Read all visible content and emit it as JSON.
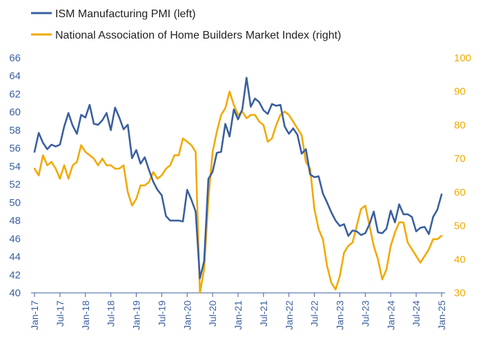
{
  "chart_data": {
    "type": "line",
    "x_start": "Jan-17",
    "x_tick_labels": [
      "Jan-17",
      "Jul-17",
      "Jan-18",
      "Jul-18",
      "Jan-19",
      "Jul-19",
      "Jan-20",
      "Jul-20",
      "Jan-21",
      "Jul-21",
      "Jan-22",
      "Jul-22",
      "Jan-23",
      "Jul-23",
      "Jan-24",
      "Jul-24",
      "Jan-25"
    ],
    "y_left": {
      "min": 40,
      "max": 66,
      "ticks": [
        40,
        42,
        44,
        46,
        48,
        50,
        52,
        54,
        56,
        58,
        60,
        62,
        64,
        66
      ]
    },
    "y_right": {
      "min": 30,
      "max": 100,
      "ticks": [
        30,
        40,
        50,
        60,
        70,
        80,
        90,
        100
      ]
    },
    "grid": false,
    "legend_position": "top-left",
    "series": [
      {
        "name": "ISM Manufacturing PMI (left)",
        "axis": "left",
        "color": "#3a5fa0",
        "values": [
          55.6,
          57.7,
          56.6,
          55.9,
          56.4,
          56.2,
          56.4,
          58.4,
          59.9,
          58.5,
          57.6,
          59.7,
          59.4,
          60.8,
          58.7,
          58.6,
          59.1,
          59.9,
          58.0,
          60.5,
          59.4,
          58.1,
          58.6,
          54.9,
          55.8,
          54.3,
          55.0,
          53.6,
          52.3,
          51.4,
          50.8,
          48.5,
          48.0,
          48.0,
          48.0,
          47.9,
          51.4,
          50.3,
          49.0,
          41.6,
          43.5,
          52.6,
          53.4,
          55.5,
          55.6,
          58.7,
          57.3,
          60.3,
          59.2,
          60.3,
          63.8,
          60.6,
          61.5,
          61.1,
          60.2,
          59.8,
          60.9,
          60.7,
          60.8,
          58.4,
          57.6,
          58.2,
          57.5,
          55.4,
          55.9,
          53.1,
          52.8,
          52.9,
          51.0,
          50.0,
          48.9,
          48.0,
          47.4,
          47.6,
          46.3,
          46.9,
          46.8,
          46.4,
          46.6,
          47.6,
          49.0,
          46.7,
          46.6,
          47.1,
          49.1,
          47.8,
          49.8,
          48.7,
          48.7,
          48.4,
          46.8,
          47.2,
          47.3,
          46.5,
          48.4,
          49.2,
          50.9
        ]
      },
      {
        "name": "National Association of Home Builders Market Index (right)",
        "axis": "right",
        "color": "#f2a900",
        "values": [
          67,
          65,
          71,
          68,
          69,
          67,
          64,
          68,
          64,
          68,
          69,
          74,
          72,
          71,
          70,
          68,
          70,
          68,
          68,
          67,
          67,
          68,
          60,
          56,
          58,
          62,
          62,
          63,
          66,
          64,
          65,
          67,
          68,
          71,
          71,
          76,
          75,
          74,
          72,
          30,
          37,
          58,
          72,
          78,
          83,
          85,
          90,
          86,
          83,
          84,
          82,
          83,
          83,
          81,
          80,
          75,
          76,
          80,
          83,
          84,
          83,
          81,
          79,
          77,
          69,
          67,
          55,
          49,
          46,
          38,
          33,
          31,
          35,
          42,
          44,
          45,
          50,
          55,
          56,
          50,
          44,
          40,
          34,
          37,
          44,
          48,
          51,
          51,
          45,
          43,
          41,
          39,
          41,
          43,
          46,
          46,
          47
        ]
      }
    ]
  }
}
